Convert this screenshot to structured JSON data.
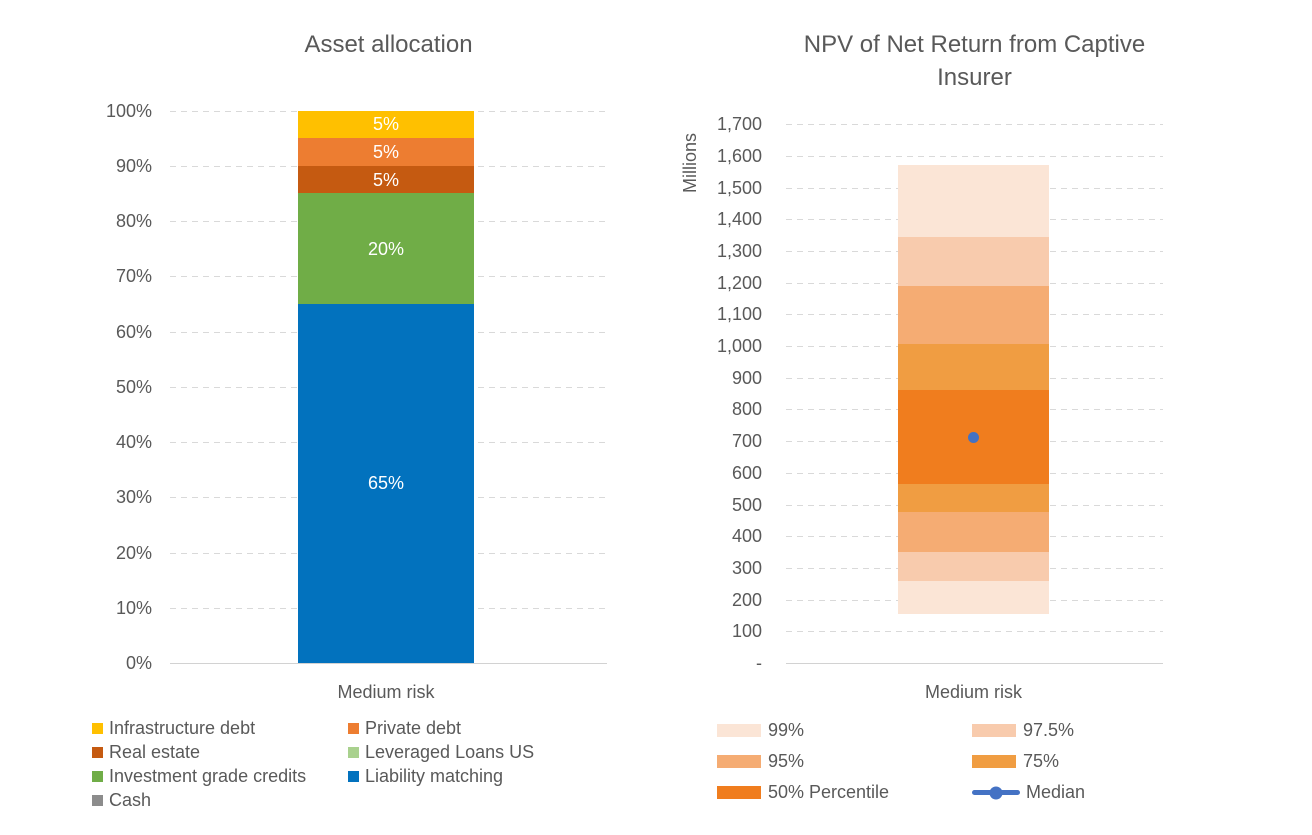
{
  "charts": {
    "left": {
      "title": "Asset allocation",
      "x_label": "Medium risk",
      "y_ticks": [
        "100%",
        "90%",
        "80%",
        "70%",
        "60%",
        "50%",
        "40%",
        "30%",
        "20%",
        "10%",
        "0%"
      ],
      "segments": [
        {
          "name": "Liability matching",
          "from": 0,
          "to": 65,
          "label": "65%",
          "color": "#0272BE"
        },
        {
          "name": "Investment grade credits",
          "from": 65,
          "to": 85,
          "label": "20%",
          "color": "#70AD47"
        },
        {
          "name": "Real estate",
          "from": 85,
          "to": 90,
          "label": "5%",
          "color": "#C55A11"
        },
        {
          "name": "Private debt",
          "from": 90,
          "to": 95,
          "label": "5%",
          "color": "#ED7D31"
        },
        {
          "name": "Infrastructure debt",
          "from": 95,
          "to": 100,
          "label": "5%",
          "color": "#FFC000"
        }
      ],
      "legend": [
        {
          "label": "Infrastructure debt",
          "color": "#FFC000"
        },
        {
          "label": "Private debt",
          "color": "#ED7D31"
        },
        {
          "label": "Real estate",
          "color": "#C55A11"
        },
        {
          "label": "Leveraged Loans US",
          "color": "#A9D18E"
        },
        {
          "label": "Investment grade credits",
          "color": "#70AD47"
        },
        {
          "label": "Liability matching",
          "color": "#0272BE"
        },
        {
          "label": "Cash",
          "color": "#8C8C8C"
        }
      ]
    },
    "right": {
      "title_lines": [
        "NPV of Net Return from Captive",
        "Insurer"
      ],
      "y_axis_unit": "Millions",
      "x_label": "Medium risk",
      "y_ticks": [
        "1,700",
        "1,600",
        "1,500",
        "1,400",
        "1,300",
        "1,200",
        "1,100",
        "1,000",
        "900",
        "800",
        "700",
        "600",
        "500",
        "400",
        "300",
        "200",
        "100",
        "-"
      ],
      "bands": [
        {
          "name": "99%",
          "from": 155,
          "to": 260,
          "color": "#FBE5D6"
        },
        {
          "name": "97.5%",
          "from": 260,
          "to": 350,
          "color": "#F8CBAD"
        },
        {
          "name": "95%",
          "from": 350,
          "to": 475,
          "color": "#F5AC73"
        },
        {
          "name": "75%",
          "from": 475,
          "to": 565,
          "color": "#F09D42"
        },
        {
          "name": "50% Percentile",
          "from": 565,
          "to": 860,
          "color": "#F07D1E"
        },
        {
          "name": "75%",
          "from": 860,
          "to": 1005,
          "color": "#F09D42"
        },
        {
          "name": "95%",
          "from": 1005,
          "to": 1190,
          "color": "#F5AC73"
        },
        {
          "name": "97.5%",
          "from": 1190,
          "to": 1345,
          "color": "#F8CBAD"
        },
        {
          "name": "99%",
          "from": 1345,
          "to": 1570,
          "color": "#FBE5D6"
        }
      ],
      "median": {
        "label": "Median",
        "value": 710,
        "color": "#4472C4"
      },
      "legend": [
        {
          "label": "99%",
          "color": "#FBE5D6",
          "type": "band"
        },
        {
          "label": "97.5%",
          "color": "#F8CBAD",
          "type": "band"
        },
        {
          "label": "95%",
          "color": "#F5AC73",
          "type": "band"
        },
        {
          "label": "75%",
          "color": "#F09D42",
          "type": "band"
        },
        {
          "label": "50% Percentile",
          "color": "#F07D1E",
          "type": "band"
        },
        {
          "label": "Median",
          "color": "#4472C4",
          "type": "line-marker"
        }
      ]
    }
  },
  "chart_data": [
    {
      "type": "bar",
      "subtype": "stacked-100-percent",
      "title": "Asset allocation",
      "categories": [
        "Medium risk"
      ],
      "xlabel": "",
      "ylabel": "",
      "ylim": [
        0,
        100
      ],
      "ytick_step_percent": 10,
      "grid": "dashed-horizontal",
      "legend_position": "bottom",
      "series": [
        {
          "name": "Infrastructure debt",
          "values": [
            5
          ],
          "color": "#FFC000",
          "data_label": "5%"
        },
        {
          "name": "Private debt",
          "values": [
            5
          ],
          "color": "#ED7D31",
          "data_label": "5%"
        },
        {
          "name": "Real estate",
          "values": [
            5
          ],
          "color": "#C55A11",
          "data_label": "5%"
        },
        {
          "name": "Leveraged Loans US",
          "values": [
            0
          ],
          "color": "#A9D18E",
          "data_label": ""
        },
        {
          "name": "Investment grade credits",
          "values": [
            20
          ],
          "color": "#70AD47",
          "data_label": "20%"
        },
        {
          "name": "Liability matching",
          "values": [
            65
          ],
          "color": "#0272BE",
          "data_label": "65%"
        },
        {
          "name": "Cash",
          "values": [
            0
          ],
          "color": "#8C8C8C",
          "data_label": ""
        }
      ]
    },
    {
      "type": "bar",
      "subtype": "stacked-percentile-fan",
      "title": "NPV of Net Return from Captive Insurer",
      "categories": [
        "Medium risk"
      ],
      "xlabel": "",
      "ylabel": "Millions",
      "ylim": [
        0,
        1700
      ],
      "ytick_step": 100,
      "grid": "dashed-horizontal",
      "legend_position": "bottom",
      "percentile_bands": [
        {
          "percentile": "99%",
          "range": [
            155,
            1570
          ],
          "color": "#FBE5D6"
        },
        {
          "percentile": "97.5%",
          "range": [
            260,
            1345
          ],
          "color": "#F8CBAD"
        },
        {
          "percentile": "95%",
          "range": [
            350,
            1190
          ],
          "color": "#F5AC73"
        },
        {
          "percentile": "75%",
          "range": [
            475,
            1005
          ],
          "color": "#F09D42"
        },
        {
          "percentile": "50% Percentile",
          "range": [
            565,
            860
          ],
          "color": "#F07D1E"
        }
      ],
      "median": {
        "values": [
          710
        ],
        "color": "#4472C4",
        "marker": "circle"
      }
    }
  ]
}
